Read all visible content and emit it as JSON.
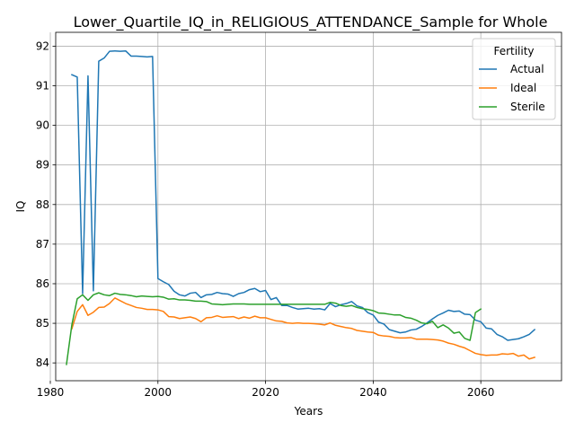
{
  "chart_data": {
    "type": "line",
    "title": "Lower_Quartile_IQ_in_RELIGIOUS_ATTENDANCE_Sample for Whole",
    "xlabel": "Years",
    "ylabel": "IQ",
    "xlim": [
      1981,
      2075
    ],
    "ylim": [
      83.55,
      92.35
    ],
    "xticks": [
      1980,
      2000,
      2020,
      2040,
      2060
    ],
    "yticks": [
      84,
      85,
      86,
      87,
      88,
      89,
      90,
      91,
      92
    ],
    "grid": true,
    "legend": {
      "title": "Fertility",
      "placement": "top-right"
    },
    "series": [
      {
        "name": "Actual",
        "color": "#1f77b4",
        "points": [
          [
            1984,
            91.28
          ],
          [
            1985,
            91.22
          ],
          [
            1986,
            85.75
          ],
          [
            1987,
            91.25
          ],
          [
            1988,
            85.82
          ],
          [
            1989,
            91.62
          ],
          [
            1990,
            91.7
          ],
          [
            1991,
            91.87
          ],
          [
            1992,
            91.88
          ],
          [
            1993,
            91.87
          ],
          [
            1994,
            91.88
          ],
          [
            1995,
            91.75
          ],
          [
            1996,
            91.75
          ],
          [
            1997,
            91.74
          ],
          [
            1998,
            91.73
          ],
          [
            1999,
            91.74
          ],
          [
            2000,
            86.13
          ],
          [
            2001,
            86.05
          ],
          [
            2002,
            85.98
          ],
          [
            2003,
            85.81
          ],
          [
            2004,
            85.72
          ],
          [
            2005,
            85.69
          ],
          [
            2006,
            85.76
          ],
          [
            2007,
            85.78
          ],
          [
            2008,
            85.65
          ],
          [
            2009,
            85.72
          ],
          [
            2010,
            85.73
          ],
          [
            2011,
            85.78
          ],
          [
            2012,
            85.75
          ],
          [
            2013,
            85.74
          ],
          [
            2014,
            85.68
          ],
          [
            2015,
            85.75
          ],
          [
            2016,
            85.78
          ],
          [
            2017,
            85.85
          ],
          [
            2018,
            85.88
          ],
          [
            2019,
            85.8
          ],
          [
            2020,
            85.83
          ],
          [
            2021,
            85.6
          ],
          [
            2022,
            85.65
          ],
          [
            2023,
            85.45
          ],
          [
            2024,
            85.45
          ],
          [
            2025,
            85.4
          ],
          [
            2026,
            85.36
          ],
          [
            2027,
            85.37
          ],
          [
            2028,
            85.38
          ],
          [
            2029,
            85.36
          ],
          [
            2030,
            85.37
          ],
          [
            2031,
            85.34
          ],
          [
            2032,
            85.5
          ],
          [
            2033,
            85.42
          ],
          [
            2034,
            85.47
          ],
          [
            2035,
            85.5
          ],
          [
            2036,
            85.55
          ],
          [
            2037,
            85.44
          ],
          [
            2038,
            85.4
          ],
          [
            2039,
            85.27
          ],
          [
            2040,
            85.21
          ],
          [
            2041,
            85.03
          ],
          [
            2042,
            84.98
          ],
          [
            2043,
            84.84
          ],
          [
            2044,
            84.8
          ],
          [
            2045,
            84.76
          ],
          [
            2046,
            84.78
          ],
          [
            2047,
            84.83
          ],
          [
            2048,
            84.85
          ],
          [
            2049,
            84.92
          ],
          [
            2050,
            85.01
          ],
          [
            2051,
            85.11
          ],
          [
            2052,
            85.2
          ],
          [
            2053,
            85.26
          ],
          [
            2054,
            85.33
          ],
          [
            2055,
            85.3
          ],
          [
            2056,
            85.31
          ],
          [
            2057,
            85.23
          ],
          [
            2058,
            85.22
          ],
          [
            2059,
            85.08
          ],
          [
            2060,
            85.04
          ],
          [
            2061,
            84.88
          ],
          [
            2062,
            84.86
          ],
          [
            2063,
            84.72
          ],
          [
            2064,
            84.66
          ],
          [
            2065,
            84.57
          ],
          [
            2066,
            84.59
          ],
          [
            2067,
            84.61
          ],
          [
            2068,
            84.66
          ],
          [
            2069,
            84.72
          ],
          [
            2070,
            84.84
          ]
        ]
      },
      {
        "name": "Ideal",
        "color": "#ff7f0e",
        "points": [
          [
            1984,
            84.86
          ],
          [
            1985,
            85.3
          ],
          [
            1986,
            85.47
          ],
          [
            1987,
            85.2
          ],
          [
            1988,
            85.28
          ],
          [
            1989,
            85.4
          ],
          [
            1990,
            85.41
          ],
          [
            1991,
            85.5
          ],
          [
            1992,
            85.64
          ],
          [
            1993,
            85.57
          ],
          [
            1994,
            85.5
          ],
          [
            1995,
            85.45
          ],
          [
            1996,
            85.4
          ],
          [
            1997,
            85.38
          ],
          [
            1998,
            85.35
          ],
          [
            1999,
            85.35
          ],
          [
            2000,
            85.34
          ],
          [
            2001,
            85.3
          ],
          [
            2002,
            85.17
          ],
          [
            2003,
            85.16
          ],
          [
            2004,
            85.12
          ],
          [
            2005,
            85.14
          ],
          [
            2006,
            85.16
          ],
          [
            2007,
            85.12
          ],
          [
            2008,
            85.04
          ],
          [
            2009,
            85.14
          ],
          [
            2010,
            85.15
          ],
          [
            2011,
            85.19
          ],
          [
            2012,
            85.15
          ],
          [
            2013,
            85.16
          ],
          [
            2014,
            85.17
          ],
          [
            2015,
            85.12
          ],
          [
            2016,
            85.16
          ],
          [
            2017,
            85.13
          ],
          [
            2018,
            85.18
          ],
          [
            2019,
            85.14
          ],
          [
            2020,
            85.14
          ],
          [
            2021,
            85.1
          ],
          [
            2022,
            85.06
          ],
          [
            2023,
            85.05
          ],
          [
            2024,
            85.01
          ],
          [
            2025,
            85.0
          ],
          [
            2026,
            85.01
          ],
          [
            2027,
            85.0
          ],
          [
            2028,
            85.0
          ],
          [
            2029,
            84.99
          ],
          [
            2030,
            84.98
          ],
          [
            2031,
            84.96
          ],
          [
            2032,
            85.01
          ],
          [
            2033,
            84.95
          ],
          [
            2034,
            84.92
          ],
          [
            2035,
            84.89
          ],
          [
            2036,
            84.87
          ],
          [
            2037,
            84.82
          ],
          [
            2038,
            84.8
          ],
          [
            2039,
            84.78
          ],
          [
            2040,
            84.77
          ],
          [
            2041,
            84.7
          ],
          [
            2042,
            84.68
          ],
          [
            2043,
            84.67
          ],
          [
            2044,
            84.64
          ],
          [
            2045,
            84.63
          ],
          [
            2046,
            84.63
          ],
          [
            2047,
            84.64
          ],
          [
            2048,
            84.6
          ],
          [
            2049,
            84.6
          ],
          [
            2050,
            84.6
          ],
          [
            2051,
            84.59
          ],
          [
            2052,
            84.58
          ],
          [
            2053,
            84.55
          ],
          [
            2054,
            84.5
          ],
          [
            2055,
            84.47
          ],
          [
            2056,
            84.42
          ],
          [
            2057,
            84.38
          ],
          [
            2058,
            84.31
          ],
          [
            2059,
            84.24
          ],
          [
            2060,
            84.21
          ],
          [
            2061,
            84.19
          ],
          [
            2062,
            84.2
          ],
          [
            2063,
            84.2
          ],
          [
            2064,
            84.23
          ],
          [
            2065,
            84.22
          ],
          [
            2066,
            84.24
          ],
          [
            2067,
            84.17
          ],
          [
            2068,
            84.2
          ],
          [
            2069,
            84.1
          ],
          [
            2070,
            84.14
          ]
        ]
      },
      {
        "name": "Sterile",
        "color": "#2ca02c",
        "points": [
          [
            1983,
            83.96
          ],
          [
            1984,
            84.96
          ],
          [
            1985,
            85.62
          ],
          [
            1986,
            85.72
          ],
          [
            1987,
            85.58
          ],
          [
            1988,
            85.72
          ],
          [
            1989,
            85.77
          ],
          [
            1990,
            85.72
          ],
          [
            1991,
            85.7
          ],
          [
            1992,
            85.76
          ],
          [
            1993,
            85.73
          ],
          [
            1994,
            85.72
          ],
          [
            1995,
            85.7
          ],
          [
            1996,
            85.67
          ],
          [
            1997,
            85.69
          ],
          [
            1998,
            85.68
          ],
          [
            1999,
            85.67
          ],
          [
            2000,
            85.68
          ],
          [
            2001,
            85.66
          ],
          [
            2002,
            85.61
          ],
          [
            2003,
            85.62
          ],
          [
            2004,
            85.59
          ],
          [
            2005,
            85.59
          ],
          [
            2006,
            85.58
          ],
          [
            2007,
            85.56
          ],
          [
            2008,
            85.56
          ],
          [
            2009,
            85.55
          ],
          [
            2010,
            85.49
          ],
          [
            2011,
            85.48
          ],
          [
            2012,
            85.47
          ],
          [
            2013,
            85.48
          ],
          [
            2014,
            85.49
          ],
          [
            2015,
            85.49
          ],
          [
            2016,
            85.49
          ],
          [
            2017,
            85.48
          ],
          [
            2018,
            85.48
          ],
          [
            2019,
            85.48
          ],
          [
            2020,
            85.48
          ],
          [
            2021,
            85.48
          ],
          [
            2022,
            85.48
          ],
          [
            2023,
            85.48
          ],
          [
            2024,
            85.48
          ],
          [
            2025,
            85.48
          ],
          [
            2026,
            85.48
          ],
          [
            2027,
            85.48
          ],
          [
            2028,
            85.48
          ],
          [
            2029,
            85.48
          ],
          [
            2030,
            85.48
          ],
          [
            2031,
            85.48
          ],
          [
            2032,
            85.53
          ],
          [
            2033,
            85.51
          ],
          [
            2034,
            85.45
          ],
          [
            2035,
            85.43
          ],
          [
            2036,
            85.45
          ],
          [
            2037,
            85.4
          ],
          [
            2038,
            85.37
          ],
          [
            2039,
            85.35
          ],
          [
            2040,
            85.32
          ],
          [
            2041,
            85.26
          ],
          [
            2042,
            85.25
          ],
          [
            2043,
            85.23
          ],
          [
            2044,
            85.21
          ],
          [
            2045,
            85.21
          ],
          [
            2046,
            85.15
          ],
          [
            2047,
            85.13
          ],
          [
            2048,
            85.08
          ],
          [
            2049,
            85.01
          ],
          [
            2050,
            84.99
          ],
          [
            2051,
            85.05
          ],
          [
            2052,
            84.89
          ],
          [
            2053,
            84.96
          ],
          [
            2054,
            84.88
          ],
          [
            2055,
            84.75
          ],
          [
            2056,
            84.78
          ],
          [
            2057,
            84.62
          ],
          [
            2058,
            84.57
          ],
          [
            2059,
            85.27
          ],
          [
            2060,
            85.36
          ]
        ]
      }
    ]
  }
}
